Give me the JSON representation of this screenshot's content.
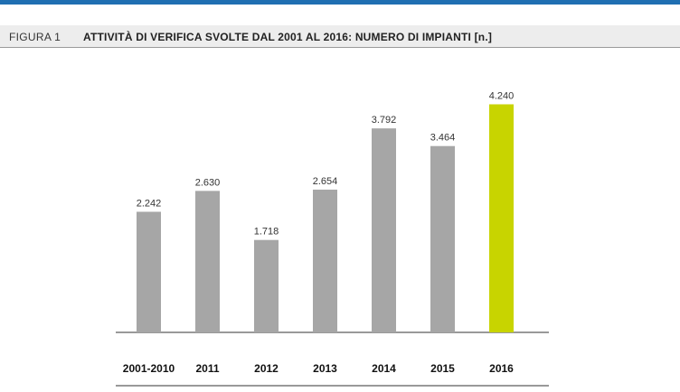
{
  "figure": {
    "label": "FIGURA 1",
    "title": "ATTIVITÀ DI VERIFICA SVOLTE DAL 2001 AL 2016: NUMERO DI IMPIANTI [n.]"
  },
  "colors": {
    "accent_rule": "#1f6fb2",
    "bar_default": "#a6a6a6",
    "bar_highlight": "#c8d400"
  },
  "chart_data": {
    "type": "bar",
    "title": "ATTIVITÀ DI VERIFICA SVOLTE DAL 2001 AL 2016: NUMERO DI IMPIANTI [n.]",
    "categories": [
      "2001-2010",
      "2011",
      "2012",
      "2013",
      "2014",
      "2015",
      "2016"
    ],
    "values": [
      2242,
      2630,
      1718,
      2654,
      3792,
      3464,
      4240
    ],
    "value_labels": [
      "2.242",
      "2.630",
      "1.718",
      "2.654",
      "3.792",
      "3.464",
      "4.240"
    ],
    "highlight_category": "2016",
    "ylim": [
      0,
      4500
    ],
    "grid": false,
    "legend": "none",
    "xlabel": "",
    "ylabel": ""
  }
}
